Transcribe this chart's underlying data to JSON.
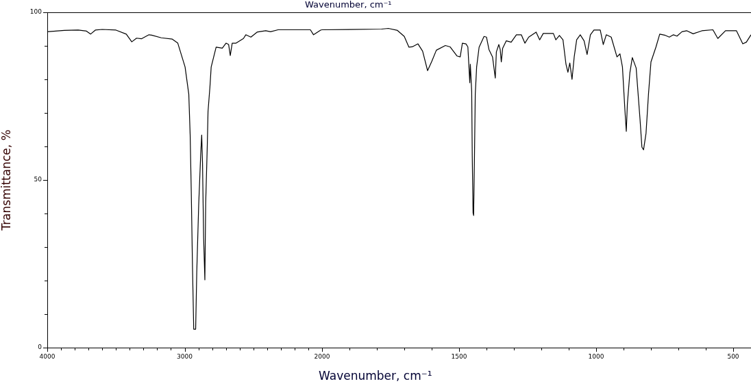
{
  "chart_data": [
    {
      "type": "line",
      "ylabel": "Transmittance, %",
      "xlim": [
        4000,
        2000
      ],
      "ylim": [
        0,
        100
      ],
      "xticks": [
        4000,
        {
          "value": 3900,
          "label": null
        },
        {
          "value": 3800,
          "label": null
        },
        {
          "value": 3700,
          "label": null
        },
        {
          "value": 3600,
          "label": null
        },
        {
          "value": 3500,
          "label": null
        },
        {
          "value": 3400,
          "label": null
        },
        {
          "value": 3300,
          "label": null
        },
        {
          "value": 3200,
          "label": null
        },
        {
          "value": 3100,
          "label": null
        },
        3000,
        {
          "value": 2900,
          "label": null
        },
        {
          "value": 2800,
          "label": null
        },
        {
          "value": 2700,
          "label": null
        },
        {
          "value": 2600,
          "label": null
        },
        {
          "value": 2500,
          "label": null
        },
        {
          "value": 2400,
          "label": null
        },
        {
          "value": 2300,
          "label": null
        },
        {
          "value": 2200,
          "label": null
        },
        {
          "value": 2100,
          "label": null
        },
        2000
      ],
      "yticks": [
        0,
        {
          "value": 10,
          "label": null
        },
        {
          "value": 20,
          "label": null
        },
        {
          "value": 30,
          "label": null
        },
        {
          "value": 40,
          "label": null
        },
        50,
        {
          "value": 60,
          "label": null
        },
        {
          "value": 70,
          "label": null
        },
        {
          "value": 80,
          "label": null
        },
        {
          "value": 90,
          "label": null
        },
        100
      ],
      "grid": false,
      "legend": false,
      "marker": "none",
      "line_style": "solid",
      "x": [
        4000,
        3875,
        3775,
        3715,
        3685,
        3650,
        3600,
        3500,
        3425,
        3385,
        3350,
        3315,
        3260,
        3240,
        3170,
        3090,
        3050,
        2997,
        2970,
        2960,
        2952,
        2943,
        2934,
        2920,
        2912,
        2898,
        2883,
        2876,
        2870,
        2862,
        2853,
        2847,
        2835,
        2830,
        2816,
        2807,
        2798,
        2771,
        2726,
        2699,
        2680,
        2668,
        2654,
        2626,
        2572,
        2555,
        2518,
        2473,
        2410,
        2375,
        2320,
        2085,
        2062,
        2010,
        2000
      ],
      "series": [
        {
          "color": "#000000",
          "values": [
            94.2,
            94.6,
            94.7,
            94.4,
            93.5,
            94.7,
            94.9,
            94.7,
            93.5,
            91.2,
            92.3,
            92.1,
            93.3,
            93.2,
            92.4,
            92,
            90.8,
            83.7,
            75.6,
            63.4,
            46.7,
            23.9,
            5.5,
            5.5,
            22.4,
            42.4,
            57.9,
            63.4,
            54.9,
            32.8,
            20.2,
            43,
            60.8,
            70.4,
            77.8,
            83.7,
            85.2,
            89.6,
            89.3,
            90.8,
            90.4,
            87.1,
            90.8,
            90.8,
            92.2,
            93.3,
            92.6,
            94.1,
            94.5,
            94.2,
            94.8,
            94.8,
            93.3,
            94.7,
            94.8
          ]
        }
      ]
    },
    {
      "type": "line",
      "title": "Wavenumber, cm⁻¹",
      "xlabel": "Wavenumber, cm⁻¹",
      "xlim": [
        2000,
        435
      ],
      "ylim": [
        0,
        100
      ],
      "tick_labels": "x",
      "xticks": [
        {
          "value": 1900,
          "label": null
        },
        {
          "value": 1800,
          "label": null
        },
        {
          "value": 1700,
          "label": null
        },
        {
          "value": 1600,
          "label": null
        },
        1500,
        {
          "value": 1400,
          "label": null
        },
        {
          "value": 1300,
          "label": null
        },
        {
          "value": 1200,
          "label": null
        },
        {
          "value": 1100,
          "label": null
        },
        1000,
        {
          "value": 900,
          "label": null
        },
        {
          "value": 800,
          "label": null
        },
        {
          "value": 700,
          "label": null
        },
        {
          "value": 600,
          "label": null
        },
        500
      ],
      "grid": false,
      "legend": false,
      "marker": "none",
      "line_style": "solid",
      "x": [
        2000,
        1783,
        1758,
        1725,
        1700,
        1683,
        1671,
        1650,
        1633,
        1615,
        1600,
        1583,
        1550,
        1533,
        1508,
        1496,
        1488,
        1475,
        1468,
        1463,
        1461,
        1459,
        1454,
        1452,
        1449,
        1447,
        1444,
        1441,
        1436,
        1427,
        1409,
        1400,
        1391,
        1378,
        1368,
        1364,
        1355,
        1350,
        1346,
        1341,
        1328,
        1310,
        1291,
        1273,
        1260,
        1246,
        1219,
        1206,
        1193,
        1156,
        1147,
        1134,
        1121,
        1110,
        1103,
        1096,
        1088,
        1080,
        1071,
        1058,
        1044,
        1033,
        1021,
        1008,
        985,
        974,
        963,
        945,
        924,
        913,
        904,
        895,
        890,
        886,
        877,
        868,
        854,
        840,
        833,
        827,
        818,
        809,
        800,
        782,
        768,
        750,
        733,
        718,
        705,
        687,
        669,
        646,
        614,
        574,
        556,
        528,
        488,
        465,
        452,
        435
      ],
      "series": [
        {
          "color": "#000000",
          "values": [
            94.8,
            95,
            95.2,
            94.6,
            92.8,
            89.6,
            89.7,
            90.6,
            88.4,
            82.6,
            85.3,
            88.7,
            90.1,
            89.7,
            87,
            86.7,
            90.8,
            90.6,
            89.7,
            82.2,
            79,
            84.5,
            76.3,
            57.2,
            40.2,
            39.4,
            56.4,
            75.6,
            83.7,
            89.6,
            92.8,
            92.6,
            88.9,
            86.7,
            80.4,
            88.2,
            90.4,
            88.9,
            85.2,
            89.3,
            91.5,
            91.1,
            93.3,
            93.3,
            90.8,
            92.6,
            94.1,
            91.8,
            93.7,
            93.7,
            91.8,
            93.1,
            91.8,
            84.5,
            82.1,
            84.9,
            80,
            86.7,
            91.8,
            93.3,
            91.5,
            87.4,
            93.3,
            94.7,
            94.7,
            90.4,
            93.3,
            92.6,
            86.7,
            87.6,
            83.7,
            70.8,
            64.5,
            72.7,
            81.9,
            86.5,
            83.4,
            68.2,
            59.8,
            59,
            63.9,
            75.6,
            85.2,
            89.6,
            93.5,
            93.2,
            92.6,
            93.3,
            92.9,
            94.2,
            94.5,
            93.6,
            94.5,
            94.8,
            92.2,
            94.5,
            94.5,
            90.6,
            91.1,
            93.3
          ]
        }
      ]
    }
  ]
}
